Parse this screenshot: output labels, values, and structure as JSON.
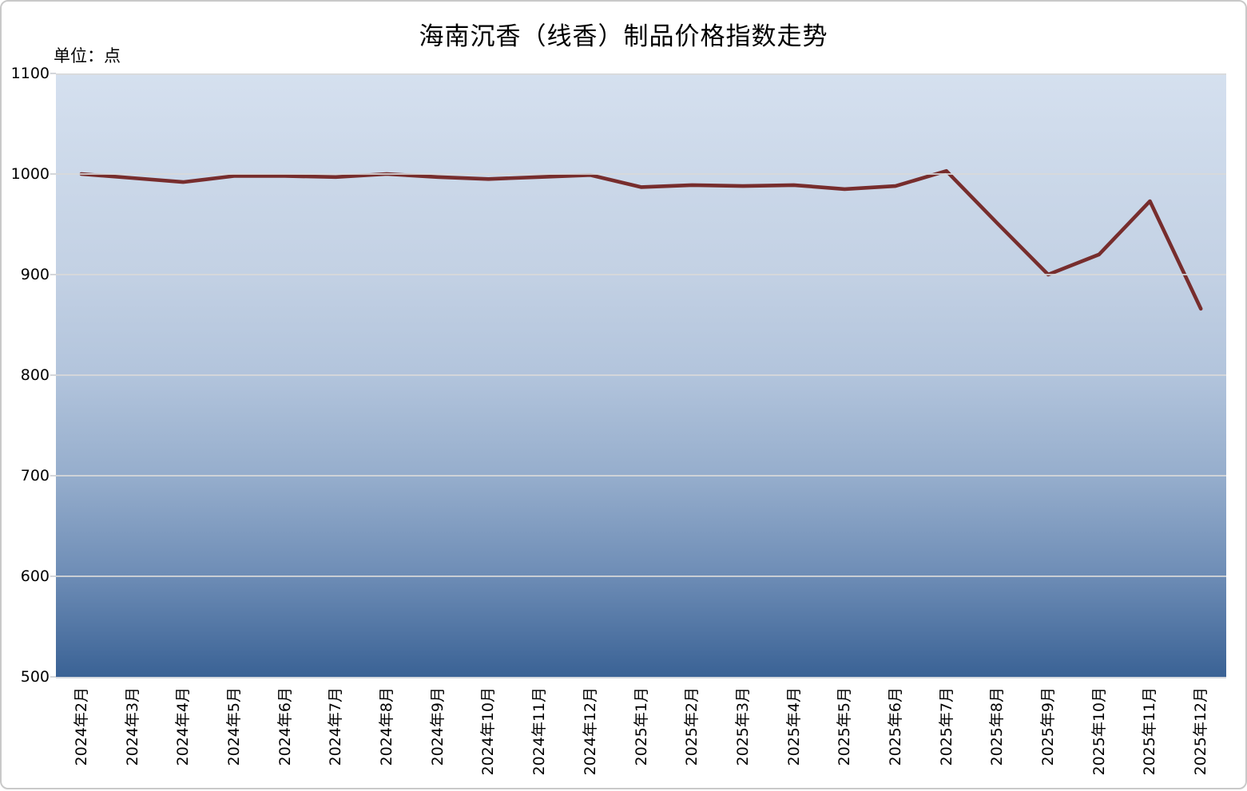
{
  "page": {
    "title": "海南沉香（线香）制品价格指数走势",
    "unit_label": "单位：点"
  },
  "chart_data": {
    "type": "line",
    "title": "海南沉香（线香）制品价格指数走势",
    "ylabel": "单位：点",
    "categories": [
      "2024年2月",
      "2024年3月",
      "2024年4月",
      "2024年5月",
      "2024年6月",
      "2024年7月",
      "2024年8月",
      "2024年9月",
      "2024年10月",
      "2024年11月",
      "2024年12月",
      "2025年1月",
      "2025年2月",
      "2025年3月",
      "2025年4月",
      "2025年5月",
      "2025年6月",
      "2025年7月",
      "2025年8月",
      "2025年9月",
      "2025年10月",
      "2025年11月",
      "2025年12月"
    ],
    "values": [
      1000,
      996,
      992,
      998,
      998,
      997,
      1000,
      997,
      995,
      997,
      999,
      987,
      989,
      988,
      989,
      985,
      988,
      1003,
      951,
      900,
      920,
      973,
      866
    ],
    "ylim": [
      500,
      1100
    ],
    "yticks": [
      1100,
      1000,
      900,
      800,
      700,
      600,
      500
    ],
    "grid": true,
    "legend": false,
    "line_color": "#772D2D",
    "gridline_color": "#D9D9D9",
    "plot_bg_gradient_top": "#D5E0EF",
    "plot_bg_gradient_bottom": "#3A6295"
  }
}
